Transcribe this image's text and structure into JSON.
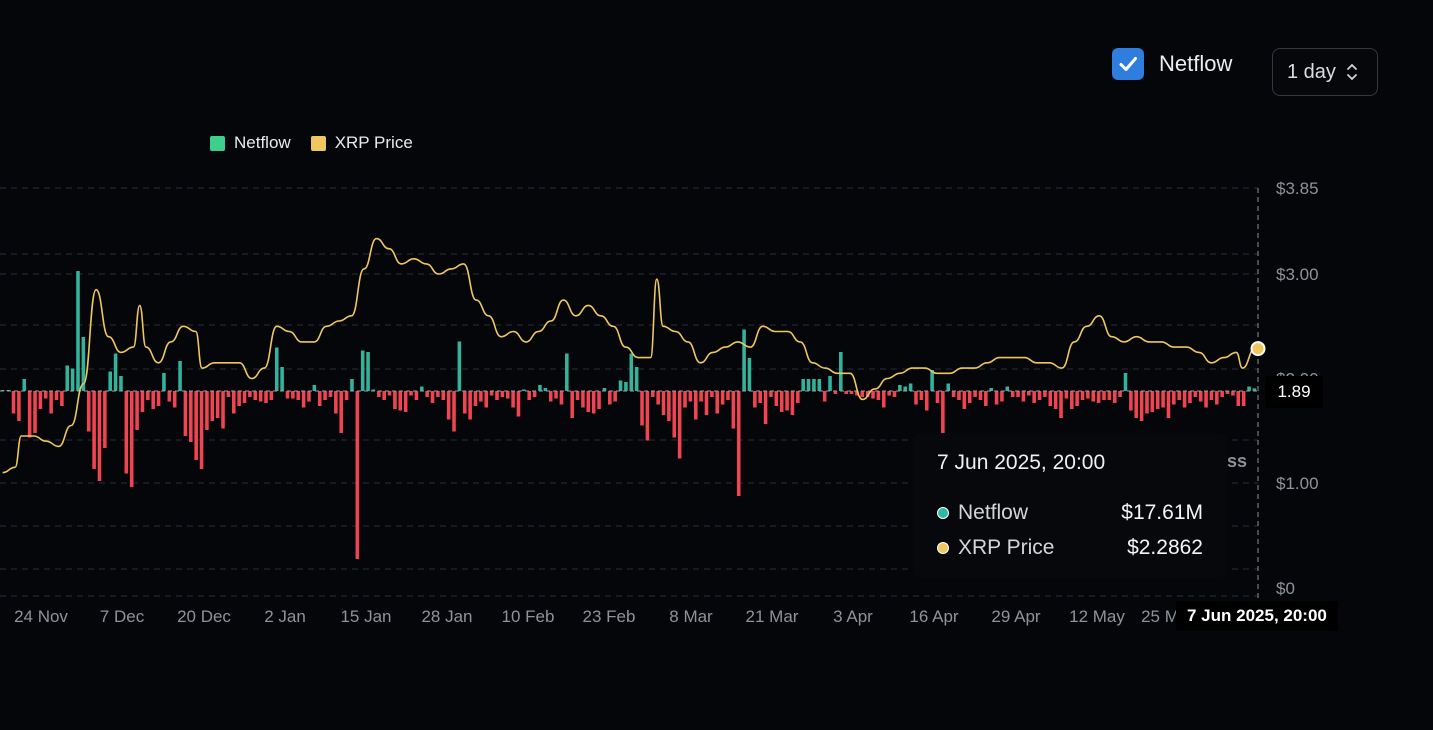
{
  "controls": {
    "netflow_toggle_label": "Netflow",
    "netflow_checked": true,
    "interval_value": "1 day"
  },
  "legend": [
    {
      "label": "Netflow",
      "color": "#3ecf8e"
    },
    {
      "label": "XRP Price",
      "color": "#f0c75e"
    }
  ],
  "colors": {
    "inflow_bar": "#33b39b",
    "outflow_bar": "#ef4451",
    "price_line": "#f0c75e",
    "background": "#04060a"
  },
  "chart_data": {
    "type": "bar+line",
    "x_tick_labels": [
      "24 Nov",
      "7 Dec",
      "20 Dec",
      "2 Jan",
      "15 Jan",
      "28 Jan",
      "10 Feb",
      "23 Feb",
      "8 Mar",
      "21 Mar",
      "3 Apr",
      "16 Apr",
      "29 Apr",
      "12 May",
      "25 M"
    ],
    "y_right_tick_labels": [
      "$3.85",
      "$3.00",
      "$2.00",
      "$1.00",
      "$0"
    ],
    "y_right_ticks": [
      3.85,
      3.0,
      2.0,
      1.0,
      0
    ],
    "price_range": [
      0,
      3.85
    ],
    "grid": true,
    "legend_position": "top-left",
    "series": [
      {
        "name": "XRP Price",
        "type": "line",
        "unit": "USD",
        "points": [
          [
            "18 Nov",
            1.1
          ],
          [
            "20 Nov",
            1.15
          ],
          [
            "21 Nov",
            1.45
          ],
          [
            "23 Nov",
            1.45
          ],
          [
            "25 Nov",
            1.4
          ],
          [
            "27 Nov",
            1.35
          ],
          [
            "29 Nov",
            1.55
          ],
          [
            "1 Dec",
            1.95
          ],
          [
            "3 Dec",
            2.85
          ],
          [
            "5 Dec",
            2.4
          ],
          [
            "7 Dec",
            2.25
          ],
          [
            "9 Dec",
            2.3
          ],
          [
            "10 Dec",
            2.7
          ],
          [
            "11 Dec",
            2.3
          ],
          [
            "13 Dec",
            2.15
          ],
          [
            "15 Dec",
            2.35
          ],
          [
            "17 Dec",
            2.5
          ],
          [
            "19 Dec",
            2.45
          ],
          [
            "20 Dec",
            2.1
          ],
          [
            "22 Dec",
            2.15
          ],
          [
            "24 Dec",
            2.15
          ],
          [
            "26 Dec",
            2.15
          ],
          [
            "28 Dec",
            2.0
          ],
          [
            "30 Dec",
            2.1
          ],
          [
            "1 Jan",
            2.5
          ],
          [
            "3 Jan",
            2.45
          ],
          [
            "5 Jan",
            2.35
          ],
          [
            "7 Jan",
            2.35
          ],
          [
            "9 Jan",
            2.5
          ],
          [
            "11 Jan",
            2.55
          ],
          [
            "13 Jan",
            2.6
          ],
          [
            "15 Jan",
            3.05
          ],
          [
            "17 Jan",
            3.35
          ],
          [
            "19 Jan",
            3.25
          ],
          [
            "21 Jan",
            3.1
          ],
          [
            "23 Jan",
            3.15
          ],
          [
            "25 Jan",
            3.1
          ],
          [
            "27 Jan",
            3.0
          ],
          [
            "29 Jan",
            3.05
          ],
          [
            "31 Jan",
            3.1
          ],
          [
            "2 Feb",
            2.75
          ],
          [
            "4 Feb",
            2.6
          ],
          [
            "6 Feb",
            2.4
          ],
          [
            "8 Feb",
            2.45
          ],
          [
            "10 Feb",
            2.35
          ],
          [
            "12 Feb",
            2.45
          ],
          [
            "14 Feb",
            2.55
          ],
          [
            "16 Feb",
            2.75
          ],
          [
            "18 Feb",
            2.6
          ],
          [
            "20 Feb",
            2.7
          ],
          [
            "22 Feb",
            2.6
          ],
          [
            "24 Feb",
            2.5
          ],
          [
            "26 Feb",
            2.3
          ],
          [
            "28 Feb",
            2.2
          ],
          [
            "2 Mar",
            2.2
          ],
          [
            "3 Mar",
            2.95
          ],
          [
            "4 Mar",
            2.5
          ],
          [
            "6 Mar",
            2.45
          ],
          [
            "8 Mar",
            2.35
          ],
          [
            "10 Mar",
            2.15
          ],
          [
            "12 Mar",
            2.25
          ],
          [
            "14 Mar",
            2.3
          ],
          [
            "16 Mar",
            2.35
          ],
          [
            "18 Mar",
            2.3
          ],
          [
            "20 Mar",
            2.5
          ],
          [
            "22 Mar",
            2.45
          ],
          [
            "24 Mar",
            2.45
          ],
          [
            "26 Mar",
            2.35
          ],
          [
            "28 Mar",
            2.15
          ],
          [
            "30 Mar",
            2.1
          ],
          [
            "1 Apr",
            2.05
          ],
          [
            "3 Apr",
            2.05
          ],
          [
            "5 Apr",
            1.8
          ],
          [
            "7 Apr",
            1.9
          ],
          [
            "9 Apr",
            2.0
          ],
          [
            "11 Apr",
            2.05
          ],
          [
            "13 Apr",
            2.1
          ],
          [
            "15 Apr",
            2.1
          ],
          [
            "17 Apr",
            2.05
          ],
          [
            "19 Apr",
            2.05
          ],
          [
            "21 Apr",
            2.1
          ],
          [
            "23 Apr",
            2.1
          ],
          [
            "25 Apr",
            2.15
          ],
          [
            "27 Apr",
            2.2
          ],
          [
            "29 Apr",
            2.2
          ],
          [
            "1 May",
            2.2
          ],
          [
            "3 May",
            2.15
          ],
          [
            "5 May",
            2.15
          ],
          [
            "7 May",
            2.1
          ],
          [
            "9 May",
            2.35
          ],
          [
            "11 May",
            2.5
          ],
          [
            "13 May",
            2.6
          ],
          [
            "15 May",
            2.4
          ],
          [
            "17 May",
            2.35
          ],
          [
            "19 May",
            2.4
          ],
          [
            "21 May",
            2.35
          ],
          [
            "23 May",
            2.35
          ],
          [
            "25 May",
            2.3
          ],
          [
            "27 May",
            2.3
          ],
          [
            "29 May",
            2.25
          ],
          [
            "31 May",
            2.15
          ],
          [
            "2 Jun",
            2.2
          ],
          [
            "4 Jun",
            2.25
          ],
          [
            "5 Jun",
            2.1
          ],
          [
            "7 Jun",
            2.2862
          ]
        ]
      },
      {
        "name": "Netflow",
        "type": "bar",
        "unit": "USD",
        "note_sign": "positive=inflow, negative=outflow",
        "approximate_values_millions": [
          0,
          0,
          -150,
          -200,
          80,
          -310,
          -280,
          -120,
          -50,
          -150,
          -60,
          -100,
          170,
          150,
          800,
          360,
          -270,
          -520,
          -600,
          -380,
          130,
          250,
          100,
          -550,
          -640,
          -260,
          -140,
          -60,
          -120,
          -100,
          120,
          -70,
          -110,
          200,
          -300,
          -340,
          -460,
          -520,
          -260,
          -200,
          -180,
          -250,
          -40,
          -150,
          -100,
          -80,
          -40,
          -60,
          -70,
          -80,
          -60,
          290,
          160,
          -50,
          -50,
          -60,
          -110,
          -70,
          40,
          -100,
          -60,
          -40,
          -150,
          -280,
          -60,
          80,
          -1120,
          270,
          260,
          10,
          -40,
          -60,
          -30,
          -120,
          -130,
          -140,
          -30,
          -60,
          30,
          -40,
          -80,
          -40,
          -60,
          -190,
          -270,
          330,
          -150,
          -190,
          -100,
          -70,
          -110,
          -30,
          -60,
          -40,
          -50,
          -110,
          -170,
          10,
          -60,
          -40,
          40,
          20,
          -70,
          -50,
          -90,
          250,
          -180,
          -60,
          -110,
          -140,
          -150,
          -120,
          20,
          -90,
          -70,
          70,
          60,
          250,
          160,
          -230,
          -330,
          -40,
          -90,
          -160,
          -200,
          -310,
          -450,
          -110,
          -70,
          -190,
          -70,
          -160,
          -40,
          -150,
          -90,
          -60,
          -250,
          -700,
          410,
          220,
          -110,
          -80,
          -220,
          -40,
          -100,
          -140,
          -130,
          -160,
          -80,
          80,
          80,
          80,
          80,
          -70,
          100,
          -20,
          260,
          -20,
          -20,
          -30,
          -40,
          -40,
          -50,
          -60,
          -110,
          -30,
          -40,
          40,
          30,
          50,
          -90,
          -60,
          -130,
          140,
          -80,
          -380,
          50,
          -40,
          -60,
          -120,
          -80,
          -40,
          -60,
          -100,
          20,
          -90,
          -70,
          30,
          -40,
          -40,
          -70,
          -30,
          -80,
          -60,
          -40,
          -100,
          -120,
          -180,
          -50,
          -120,
          -100,
          -60,
          -50,
          -70,
          -80,
          -60,
          -60,
          -80,
          -40,
          120,
          -130,
          -180,
          -200,
          -150,
          -140,
          -120,
          -110,
          -180,
          -90,
          -60,
          -110,
          -80,
          -40,
          -70,
          -110,
          -60,
          -90,
          -40,
          -20,
          -30,
          -100,
          -100,
          30,
          17.61
        ]
      }
    ],
    "crosshair": {
      "x_label": "7 Jun 2025, 20:00",
      "y_label": "1.89"
    }
  },
  "tooltip": {
    "title": "7 Jun 2025, 20:00",
    "rows": [
      {
        "label": "Netflow",
        "value": "$17.61M",
        "dot_color": "#2fb9a4"
      },
      {
        "label": "XRP Price",
        "value": "$2.2862",
        "dot_color": "#f0c75e"
      }
    ]
  },
  "watermark_fragment": "ss"
}
